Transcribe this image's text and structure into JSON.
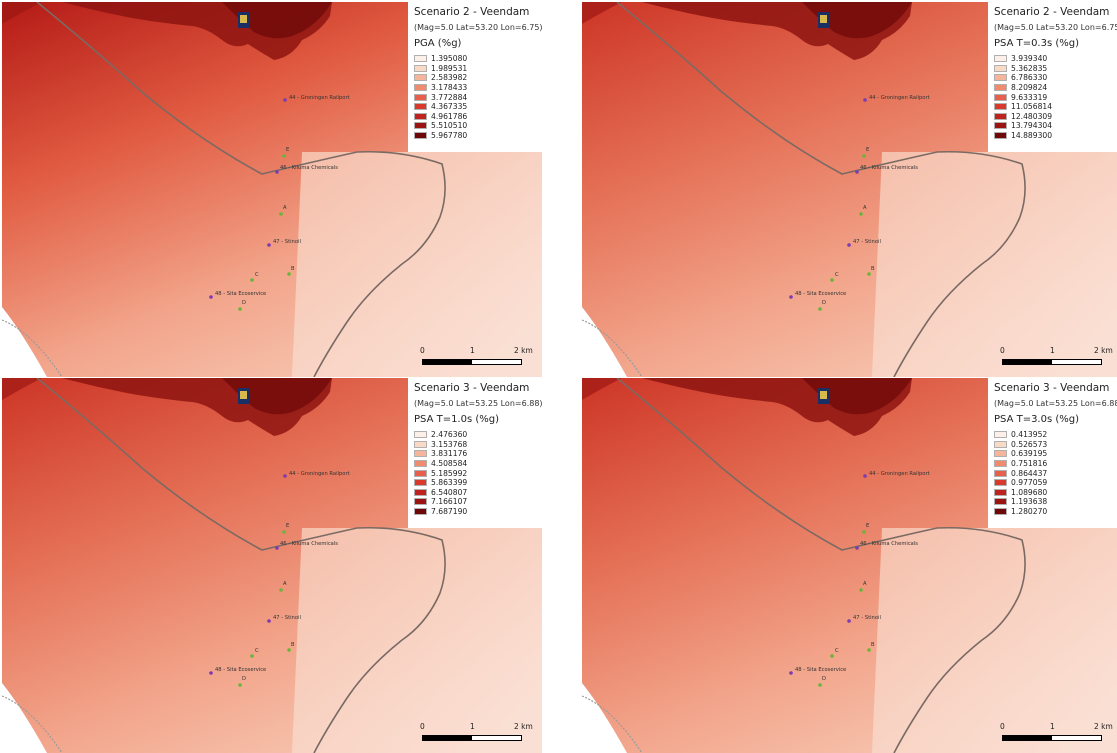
{
  "colors": {
    "ramp": [
      "#fdf0ea",
      "#fbd9c7",
      "#f6b49a",
      "#f08b6f",
      "#e8604b",
      "#d83a2e",
      "#c0221d",
      "#9b1411",
      "#6e0808"
    ],
    "boundary": "#7b6a63",
    "site_purple": "#7d3bb0",
    "site_green": "#6ab43a"
  },
  "panels": [
    {
      "title": "Scenario 2 - Veendam",
      "subtitle": "(Mag=5.0 Lat=53.20 Lon=6.75)",
      "variable": "PGA (%g)",
      "values": [
        "1.395080",
        "1.989531",
        "2.583982",
        "3.178433",
        "3.772884",
        "4.367335",
        "4.961786",
        "5.510510",
        "5.967780"
      ],
      "intensity": 0.95
    },
    {
      "title": "Scenario 2 - Veendam",
      "subtitle": "(Mag=5.0 Lat=53.20 Lon=6.75)",
      "variable": "PSA T=0.3s (%g)",
      "values": [
        "3.939340",
        "5.362835",
        "6.786330",
        "8.209824",
        "9.633319",
        "11.056814",
        "12.480309",
        "13.794304",
        "14.889300"
      ],
      "intensity": 0.82
    },
    {
      "title": "Scenario 3 - Veendam",
      "subtitle": "(Mag=5.0 Lat=53.25 Lon=6.88)",
      "variable": "PSA T=1.0s (%g)",
      "values": [
        "2.476360",
        "3.153768",
        "3.831176",
        "4.508584",
        "5.185992",
        "5.863399",
        "6.540807",
        "7.166107",
        "7.687190"
      ],
      "intensity": 0.72
    },
    {
      "title": "Scenario 3 - Veendam",
      "subtitle": "(Mag=5.0 Lat=53.25 Lon=6.88)",
      "variable": "PSA T=3.0s (%g)",
      "values": [
        "0.413952",
        "0.526573",
        "0.639195",
        "0.751816",
        "0.864437",
        "0.977059",
        "1.089680",
        "1.193638",
        "1.280270"
      ],
      "intensity": 0.7
    }
  ],
  "sites": [
    {
      "label": "44 - Groningen Railport",
      "kind": "purple"
    },
    {
      "label": "E",
      "kind": "green"
    },
    {
      "label": "46 - Kiluma Chemicals",
      "kind": "purple"
    },
    {
      "label": "A",
      "kind": "green"
    },
    {
      "label": "47 - Stinoil",
      "kind": "purple"
    },
    {
      "label": "B",
      "kind": "green"
    },
    {
      "label": "C",
      "kind": "green"
    },
    {
      "label": "48 - Sita Ecoservice",
      "kind": "purple"
    },
    {
      "label": "D",
      "kind": "green"
    }
  ],
  "scalebar": {
    "labels": [
      "0",
      "1",
      "2 km"
    ]
  }
}
